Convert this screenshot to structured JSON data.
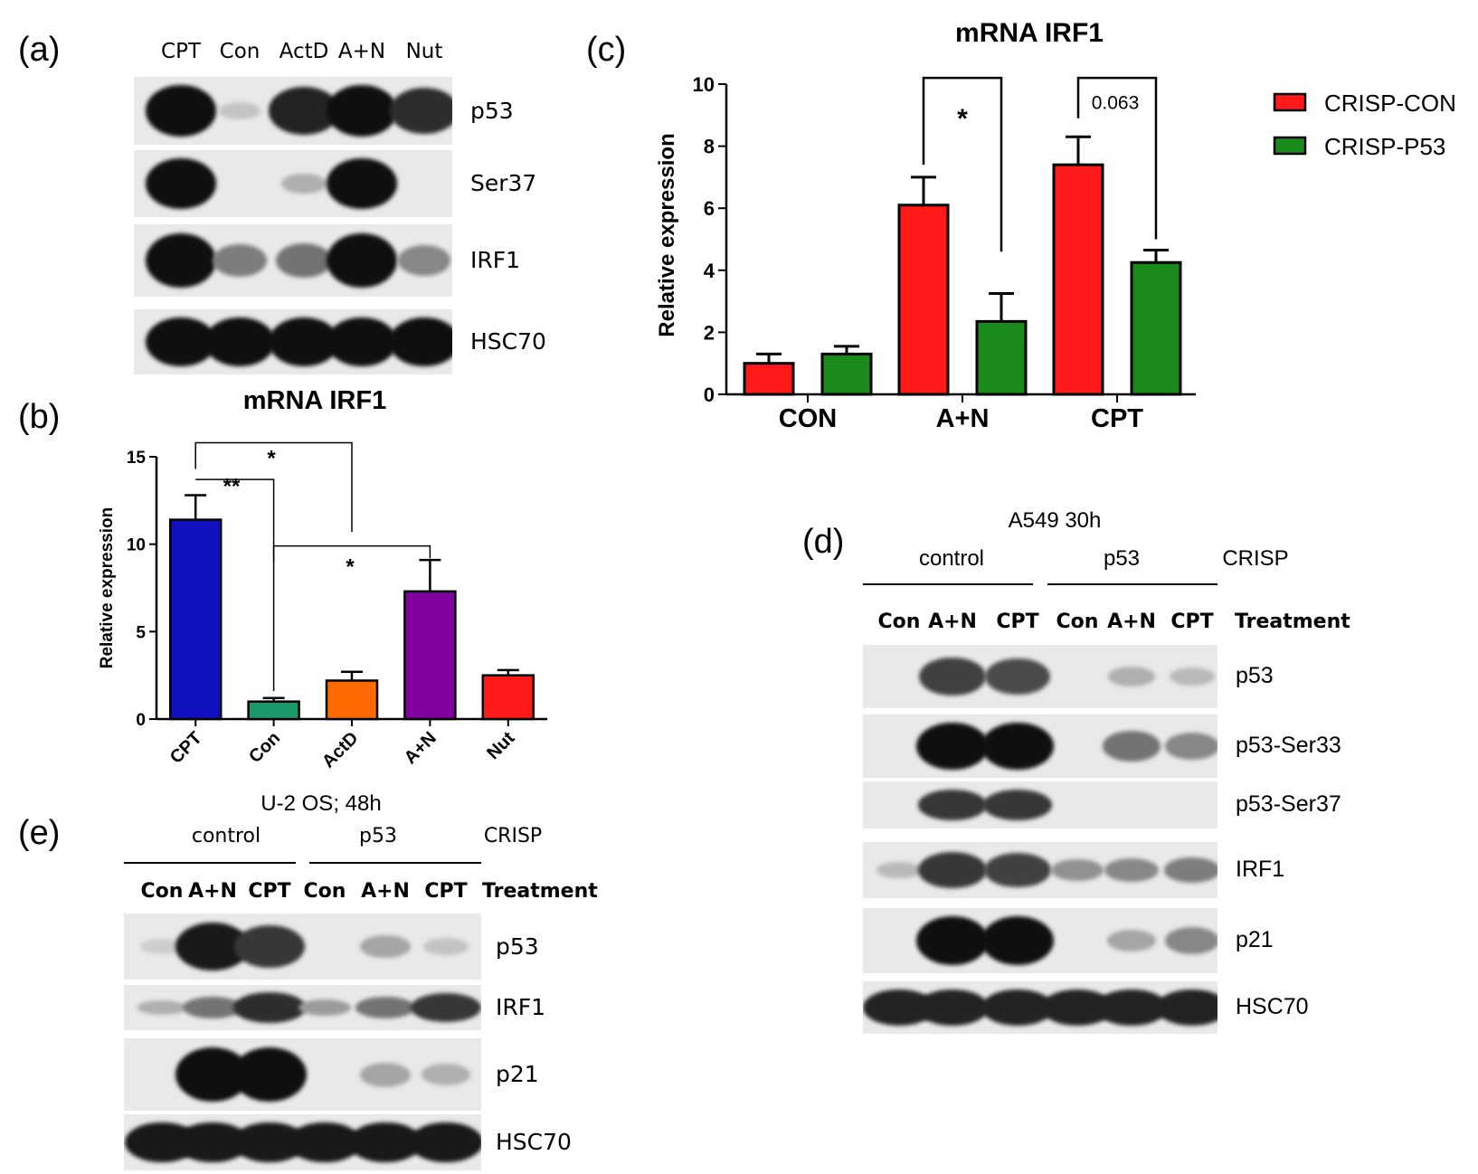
{
  "panels": {
    "a": {
      "letter": "(a)",
      "lanes": [
        "CPT",
        "Con",
        "ActD",
        "A+N",
        "Nut"
      ],
      "rows": [
        "p53",
        "Ser37",
        "IRF1",
        "HSC70"
      ],
      "band_intensity": {
        "p53": [
          1.0,
          0.1,
          0.9,
          1.0,
          0.85
        ],
        "Ser37": [
          1.0,
          0.0,
          0.2,
          1.0,
          0.0
        ],
        "IRF1": [
          1.0,
          0.45,
          0.5,
          1.0,
          0.4
        ],
        "HSC70": [
          1.0,
          1.0,
          1.0,
          1.0,
          1.0
        ]
      }
    },
    "b": {
      "letter": "(b)"
    },
    "c": {
      "letter": "(c)"
    },
    "d": {
      "letter": "(d)",
      "header": "A549 30h",
      "group1": "control",
      "group2": "p53",
      "group_suffix": "CRISP",
      "lanes": [
        "Con",
        "A+N",
        "CPT",
        "Con",
        "A+N",
        "CPT"
      ],
      "treatment_label": "Treatment",
      "rows": [
        "p53",
        "p53-Ser33",
        "p53-Ser37",
        "IRF1",
        "p21",
        "HSC70"
      ],
      "band_intensity": {
        "p53": [
          0.0,
          0.75,
          0.7,
          0.0,
          0.2,
          0.15
        ],
        "p53-Ser33": [
          0.0,
          1.0,
          1.0,
          0.0,
          0.5,
          0.4
        ],
        "p53-Ser37": [
          0.0,
          0.8,
          0.8,
          0.0,
          0.0,
          0.0
        ],
        "IRF1": [
          0.15,
          0.8,
          0.75,
          0.35,
          0.4,
          0.45
        ],
        "p21": [
          0.0,
          1.0,
          1.0,
          0.0,
          0.25,
          0.4
        ],
        "HSC70": [
          0.9,
          0.9,
          0.9,
          0.9,
          0.9,
          0.9
        ]
      }
    },
    "e": {
      "letter": "(e)",
      "header": "U-2 OS; 48h",
      "group1": "control",
      "group2": "p53",
      "group_suffix": "CRISP",
      "lanes": [
        "Con",
        "A+N",
        "CPT",
        "Con",
        "A+N",
        "CPT"
      ],
      "treatment_label": "Treatment",
      "rows": [
        "p53",
        "IRF1",
        "p21",
        "HSC70"
      ],
      "band_intensity": {
        "p53": [
          0.05,
          0.95,
          0.8,
          0.0,
          0.25,
          0.1
        ],
        "IRF1": [
          0.2,
          0.5,
          0.85,
          0.3,
          0.5,
          0.8
        ],
        "p21": [
          0.0,
          1.0,
          1.0,
          0.0,
          0.25,
          0.2
        ],
        "HSC70": [
          0.95,
          0.95,
          0.95,
          0.95,
          0.95,
          0.95
        ]
      }
    }
  },
  "chart_data": [
    {
      "panel": "b",
      "type": "bar",
      "title": "mRNA IRF1",
      "xlabel": "",
      "ylabel": "Relative expression",
      "categories": [
        "CPT",
        "Con",
        "ActD",
        "A+N",
        "Nut"
      ],
      "values": [
        11.4,
        1.0,
        2.2,
        7.3,
        2.5
      ],
      "errors": [
        1.4,
        0.2,
        0.5,
        1.8,
        0.3
      ],
      "colors": [
        "#1010c0",
        "#1a9a6a",
        "#ff6a00",
        "#8000a0",
        "#ff1a1a"
      ],
      "ylim": [
        0,
        15
      ],
      "yticks": [
        0,
        5,
        10,
        15
      ],
      "significance": [
        {
          "from": "CPT",
          "to": "Con",
          "label": "**"
        },
        {
          "from": "CPT",
          "to": "ActD",
          "label": "*"
        },
        {
          "from": "Con",
          "to": "A+N",
          "label": "*"
        }
      ],
      "grid": false
    },
    {
      "panel": "c",
      "type": "bar",
      "title": "mRNA IRF1",
      "xlabel": "",
      "ylabel": "Relative expression",
      "categories": [
        "CON",
        "A+N",
        "CPT"
      ],
      "series": [
        {
          "name": "CRISP-CON",
          "color": "#ff1a1a",
          "values": [
            1.0,
            6.1,
            7.4
          ],
          "errors": [
            0.3,
            0.9,
            0.9
          ]
        },
        {
          "name": "CRISP-P53",
          "color": "#1a8a1a",
          "values": [
            1.3,
            2.35,
            4.25
          ],
          "errors": [
            0.25,
            0.9,
            0.4
          ]
        }
      ],
      "ylim": [
        0,
        10
      ],
      "yticks": [
        0,
        2,
        4,
        6,
        8,
        10
      ],
      "significance": [
        {
          "category": "A+N",
          "label": "*"
        },
        {
          "category": "CPT",
          "label": "0.063"
        }
      ],
      "legend": "top-right",
      "grid": false
    }
  ]
}
